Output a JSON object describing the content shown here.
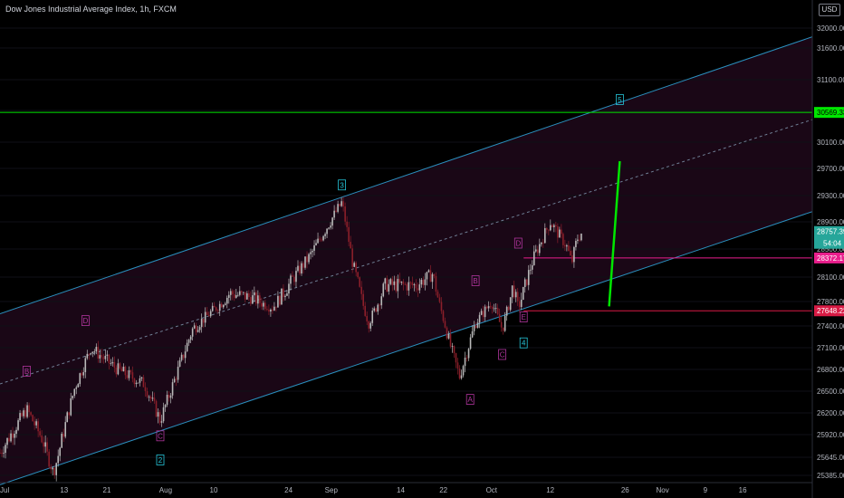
{
  "header": {
    "title": "Dow Jones Industrial Average Index, 1h, FXCM",
    "currency": "USD"
  },
  "colors": {
    "background": "#000000",
    "channel": "#2a8fbd",
    "channel_fill": "#1a0716",
    "midline": "#6f7f95",
    "candle_up": "#b9b9b9",
    "candle_down": "#8b1f2a",
    "wave_cyan": "#26c6da",
    "wave_magenta": "#b0359d",
    "green_target": "#00e600",
    "magenta_level": "#e91e8c",
    "red_level": "#d81b45",
    "price_tag": "#26a69a"
  },
  "chart_data": {
    "type": "candlestick",
    "symbol": "Dow Jones Industrial Average Index",
    "interval": "1h",
    "exchange": "FXCM",
    "currency": "USD",
    "x_tick_labels": [
      "Jul",
      "13",
      "21",
      "Aug",
      "10",
      "24",
      "Sep",
      "14",
      "22",
      "Oct",
      "12",
      "26",
      "Nov",
      "9",
      "16"
    ],
    "y_tick_labels": [
      "32000.00",
      "31600.00",
      "31100.00",
      "30600.00",
      "30100.00",
      "29700.00",
      "29300.00",
      "28900.00",
      "28500.00",
      "28100.00",
      "27800.00",
      "27400.00",
      "27100.00",
      "26800.00",
      "26500.00",
      "26200.00",
      "25920.00",
      "25645.00",
      "25385.00"
    ],
    "price_path": [
      {
        "date": "2020-07-01",
        "price": 25700
      },
      {
        "date": "2020-07-06",
        "price": 26250
      },
      {
        "date": "2020-07-09",
        "price": 25850
      },
      {
        "date": "2020-07-11",
        "price": 25420
      },
      {
        "date": "2020-07-15",
        "price": 26550
      },
      {
        "date": "2020-07-18",
        "price": 27100
      },
      {
        "date": "2020-07-23",
        "price": 26800
      },
      {
        "date": "2020-07-28",
        "price": 26600
      },
      {
        "date": "2020-07-31",
        "price": 26100
      },
      {
        "date": "2020-08-06",
        "price": 27350
      },
      {
        "date": "2020-08-13",
        "price": 27900
      },
      {
        "date": "2020-08-17",
        "price": 27850
      },
      {
        "date": "2020-08-21",
        "price": 27700
      },
      {
        "date": "2020-08-25",
        "price": 28100
      },
      {
        "date": "2020-08-28",
        "price": 28400
      },
      {
        "date": "2020-09-03",
        "price": 29200
      },
      {
        "date": "2020-09-05",
        "price": 28300
      },
      {
        "date": "2020-09-08",
        "price": 27450
      },
      {
        "date": "2020-09-11",
        "price": 28000
      },
      {
        "date": "2020-09-17",
        "price": 28000
      },
      {
        "date": "2020-09-20",
        "price": 28150
      },
      {
        "date": "2020-09-23",
        "price": 27200
      },
      {
        "date": "2020-09-25",
        "price": 26700
      },
      {
        "date": "2020-09-28",
        "price": 27450
      },
      {
        "date": "2020-10-01",
        "price": 27800
      },
      {
        "date": "2020-10-03",
        "price": 27350
      },
      {
        "date": "2020-10-05",
        "price": 28000
      },
      {
        "date": "2020-10-06",
        "price": 27700
      },
      {
        "date": "2020-10-09",
        "price": 28400
      },
      {
        "date": "2020-10-12",
        "price": 28900
      },
      {
        "date": "2020-10-15",
        "price": 28550
      },
      {
        "date": "2020-10-16",
        "price": 28300
      },
      {
        "date": "2020-10-17",
        "price": 28650
      },
      {
        "date": "2020-10-18",
        "price": 28750
      }
    ],
    "channel": {
      "upper": [
        {
          "date": "2020-07-01",
          "price": 27600
        },
        {
          "date": "2020-11-28",
          "price": 31750
        }
      ],
      "middle": [
        {
          "date": "2020-07-01",
          "price": 26600
        },
        {
          "date": "2020-11-28",
          "price": 30400
        }
      ],
      "lower": [
        {
          "date": "2020-07-01",
          "price": 25250
        },
        {
          "date": "2020-11-28",
          "price": 29000
        }
      ]
    },
    "horizontal_levels": [
      {
        "label": "30569.33",
        "value": 30569.33,
        "color": "green",
        "from_date": "2020-07-01"
      },
      {
        "label": "28372.17",
        "value": 28372.17,
        "color": "magenta",
        "from_date": "2020-10-07"
      },
      {
        "label": "27648.22",
        "value": 27648.22,
        "color": "red",
        "from_date": "2020-10-07"
      }
    ],
    "current_price": {
      "label": "28757.39",
      "value": 28757.39,
      "countdown": "54:04"
    },
    "projection": {
      "from": {
        "date": "2020-10-23",
        "price": 27720
      },
      "to": {
        "date": "2020-10-25",
        "price": 29810
      }
    },
    "wave_labels": [
      {
        "text": "B",
        "date": "2020-07-06",
        "price": 26770,
        "style": "magenta"
      },
      {
        "text": "D",
        "date": "2020-07-17",
        "price": 27480,
        "style": "magenta"
      },
      {
        "text": "C",
        "date": "2020-07-31",
        "price": 25900,
        "style": "magenta"
      },
      {
        "text": "2",
        "date": "2020-07-31",
        "price": 25600,
        "style": "cyan"
      },
      {
        "text": "3",
        "date": "2020-09-03",
        "price": 29450,
        "style": "cyan"
      },
      {
        "text": "B",
        "date": "2020-09-28",
        "price": 28050,
        "style": "magenta"
      },
      {
        "text": "A",
        "date": "2020-09-27",
        "price": 26380,
        "style": "magenta"
      },
      {
        "text": "C",
        "date": "2020-10-03",
        "price": 27000,
        "style": "magenta"
      },
      {
        "text": "E",
        "date": "2020-10-07",
        "price": 27540,
        "style": "magenta"
      },
      {
        "text": "4",
        "date": "2020-10-07",
        "price": 27160,
        "style": "cyan"
      },
      {
        "text": "D",
        "date": "2020-10-06",
        "price": 28580,
        "style": "magenta"
      },
      {
        "text": "5",
        "date": "2020-10-25",
        "price": 30770,
        "style": "cyan"
      }
    ]
  }
}
